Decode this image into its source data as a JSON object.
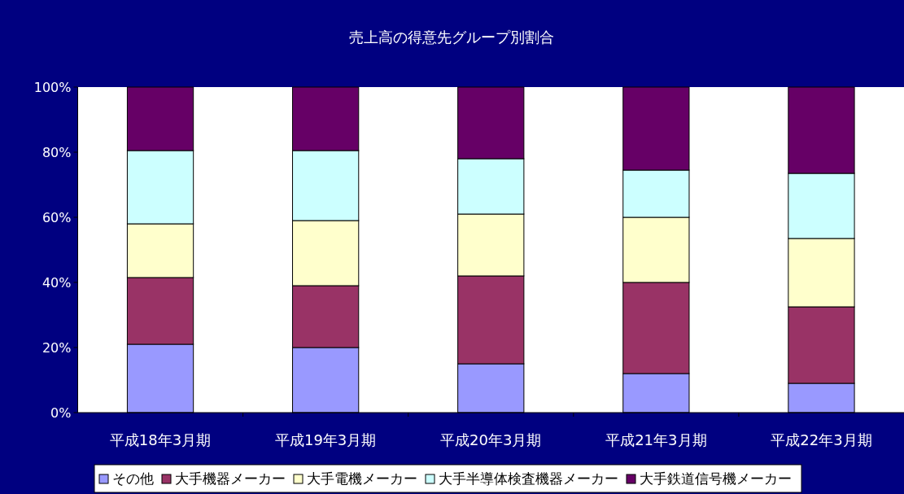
{
  "chart_data": {
    "type": "bar",
    "title": "売上高の得意先グループ別割合",
    "stacked": true,
    "legend": "bottom",
    "categories": [
      "平成18年3月期",
      "平成19年3月期",
      "平成20年3月期",
      "平成21年3月期",
      "平成22年3月期"
    ],
    "ylim": [
      0,
      100
    ],
    "yticks": [
      {
        "value": 0,
        "label": "0%"
      },
      {
        "value": 20,
        "label": "20%"
      },
      {
        "value": 40,
        "label": "40%"
      },
      {
        "value": 60,
        "label": "60%"
      },
      {
        "value": 80,
        "label": "80%"
      },
      {
        "value": 100,
        "label": "100%"
      }
    ],
    "series": [
      {
        "name": "その他",
        "color": "#9999ff",
        "values": [
          21,
          20,
          15,
          12,
          9
        ]
      },
      {
        "name": "大手機器メーカー",
        "color": "#993366",
        "values": [
          20.5,
          19,
          27,
          28,
          23.5
        ]
      },
      {
        "name": "大手電機メーカー",
        "color": "#ffffcc",
        "values": [
          16.5,
          20,
          19,
          20,
          21
        ]
      },
      {
        "name": "大手半導体検査機器メーカー",
        "color": "#ccffff",
        "values": [
          22.5,
          21.5,
          17,
          14.5,
          20
        ]
      },
      {
        "name": "大手鉄道信号機メーカー",
        "color": "#660066",
        "values": [
          19.5,
          19.5,
          22,
          25.5,
          26.5
        ]
      }
    ]
  }
}
